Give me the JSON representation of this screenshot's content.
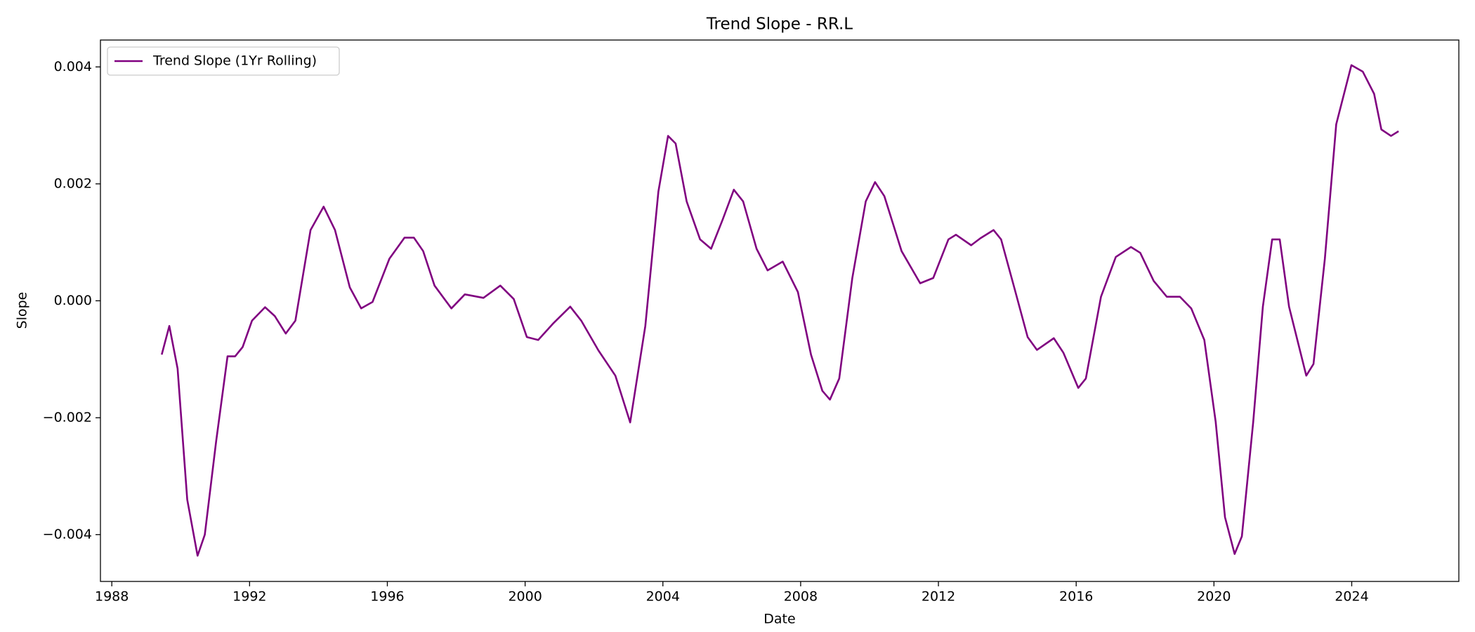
{
  "chart_data": {
    "type": "line",
    "title": "Trend Slope - RR.L",
    "xlabel": "Date",
    "ylabel": "Slope",
    "x": [
      1989.45,
      1989.67,
      1989.91,
      1990.19,
      1990.49,
      1990.7,
      1991.03,
      1991.36,
      1991.58,
      1991.8,
      1992.07,
      1992.45,
      1992.73,
      1993.05,
      1993.33,
      1993.77,
      1994.15,
      1994.48,
      1994.91,
      1995.24,
      1995.57,
      1996.06,
      1996.5,
      1996.77,
      1997.04,
      1997.37,
      1997.86,
      1998.25,
      1998.79,
      1999.28,
      1999.67,
      2000.05,
      2000.38,
      2000.81,
      2001.31,
      2001.63,
      2002.13,
      2002.62,
      2003.05,
      2003.49,
      2003.87,
      2004.15,
      2004.37,
      2004.69,
      2005.08,
      2005.4,
      2005.73,
      2006.06,
      2006.33,
      2006.72,
      2007.04,
      2007.48,
      2007.92,
      2008.3,
      2008.63,
      2008.85,
      2009.12,
      2009.5,
      2009.89,
      2010.16,
      2010.43,
      2010.93,
      2011.47,
      2011.85,
      2012.29,
      2012.51,
      2012.95,
      2013.22,
      2013.6,
      2013.82,
      2014.2,
      2014.59,
      2014.86,
      2015.35,
      2015.63,
      2016.06,
      2016.28,
      2016.72,
      2017.15,
      2017.59,
      2017.86,
      2018.25,
      2018.63,
      2019.01,
      2019.34,
      2019.72,
      2020.05,
      2020.32,
      2020.6,
      2020.81,
      2021.14,
      2021.42,
      2021.69,
      2021.91,
      2022.18,
      2022.68,
      2022.89,
      2023.22,
      2023.55,
      2023.99,
      2024.32,
      2024.65,
      2024.86,
      2025.14,
      2025.36
    ],
    "series": [
      {
        "name": "Trend Slope (1Yr Rolling)",
        "color": "#800080",
        "values": [
          -0.00092,
          -0.00043,
          -0.00116,
          -0.0034,
          -0.00436,
          -0.004,
          -0.0024,
          -0.00095,
          -0.00095,
          -0.00079,
          -0.00034,
          -0.00011,
          -0.00026,
          -0.00056,
          -0.00034,
          0.00121,
          0.00161,
          0.00121,
          0.00023,
          -0.00013,
          -2e-05,
          0.00072,
          0.00108,
          0.00108,
          0.00085,
          0.00026,
          -0.00013,
          0.00011,
          5e-05,
          0.00026,
          3e-05,
          -0.00062,
          -0.00067,
          -0.00039,
          -0.0001,
          -0.00034,
          -0.00085,
          -0.00128,
          -0.00208,
          -0.00043,
          0.00187,
          0.00282,
          0.00269,
          0.0017,
          0.00105,
          0.00089,
          0.00138,
          0.0019,
          0.0017,
          0.00089,
          0.00052,
          0.00067,
          0.00015,
          -0.00092,
          -0.00154,
          -0.00169,
          -0.00133,
          0.00039,
          0.0017,
          0.00203,
          0.00179,
          0.00085,
          0.0003,
          0.00039,
          0.00105,
          0.00113,
          0.00095,
          0.00107,
          0.00121,
          0.00105,
          0.00023,
          -0.00062,
          -0.00084,
          -0.00064,
          -0.00089,
          -0.00149,
          -0.00133,
          7e-05,
          0.00075,
          0.00092,
          0.00082,
          0.00034,
          7e-05,
          7e-05,
          -0.00013,
          -0.00067,
          -0.00207,
          -0.0037,
          -0.00433,
          -0.00403,
          -0.00207,
          -0.0001,
          0.00105,
          0.00105,
          -0.0001,
          -0.00128,
          -0.00108,
          0.00072,
          0.00302,
          0.00403,
          0.00392,
          0.00354,
          0.00293,
          0.00282,
          0.0029
        ]
      }
    ],
    "xlim": [
      1987.67,
      2027.11
    ],
    "ylim": [
      -0.0048,
      0.00446
    ],
    "xticks": [
      1988,
      1992,
      1996,
      2000,
      2004,
      2008,
      2012,
      2016,
      2020,
      2024
    ],
    "yticks": [
      {
        "value": -0.004,
        "label": "−0.004"
      },
      {
        "value": -0.002,
        "label": "−0.002"
      },
      {
        "value": 0,
        "label": "0.000"
      },
      0.002,
      0.004
    ],
    "legend": "upper left"
  }
}
